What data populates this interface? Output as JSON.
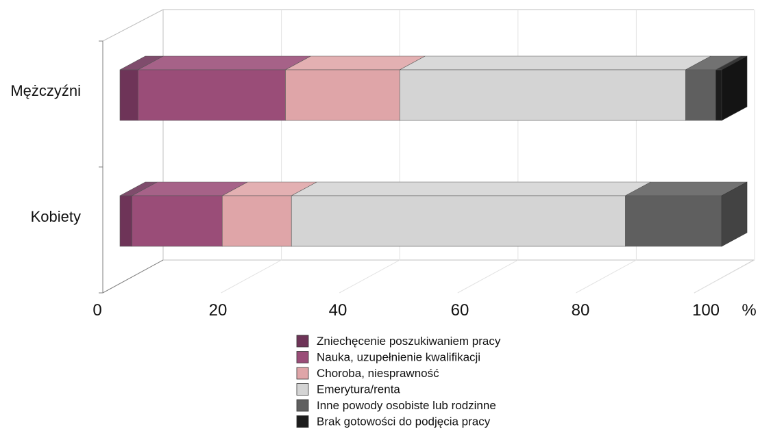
{
  "chart_data": {
    "type": "bar",
    "orientation": "horizontal",
    "stacked": "percent",
    "style": "3d",
    "categories": [
      "Mężczyźni",
      "Kobiety"
    ],
    "series": [
      {
        "name": "Zniechęcenie poszukiwaniem pracy",
        "values": [
          3,
          2
        ],
        "color": "#6E3458"
      },
      {
        "name": "Nauka, uzupełnienie kwalifikacji",
        "values": [
          24.5,
          15
        ],
        "color": "#9A4D78"
      },
      {
        "name": "Choroba, niesprawność",
        "values": [
          19,
          11.5
        ],
        "color": "#DFA5A8"
      },
      {
        "name": "Emerytura/renta",
        "values": [
          47.5,
          55.5
        ],
        "color": "#D4D4D4"
      },
      {
        "name": "Inne powody osobiste lub rodzinne",
        "values": [
          5,
          16
        ],
        "color": "#5F5F5F"
      },
      {
        "name": "Brak gotowości do podjęcia pracy",
        "values": [
          1,
          0
        ],
        "color": "#1C1C1C"
      }
    ],
    "x_ticks": [
      0,
      20,
      40,
      60,
      80,
      100
    ],
    "x_unit": "%",
    "xlim": [
      0,
      100
    ],
    "grid": true,
    "legend_position": "bottom"
  }
}
